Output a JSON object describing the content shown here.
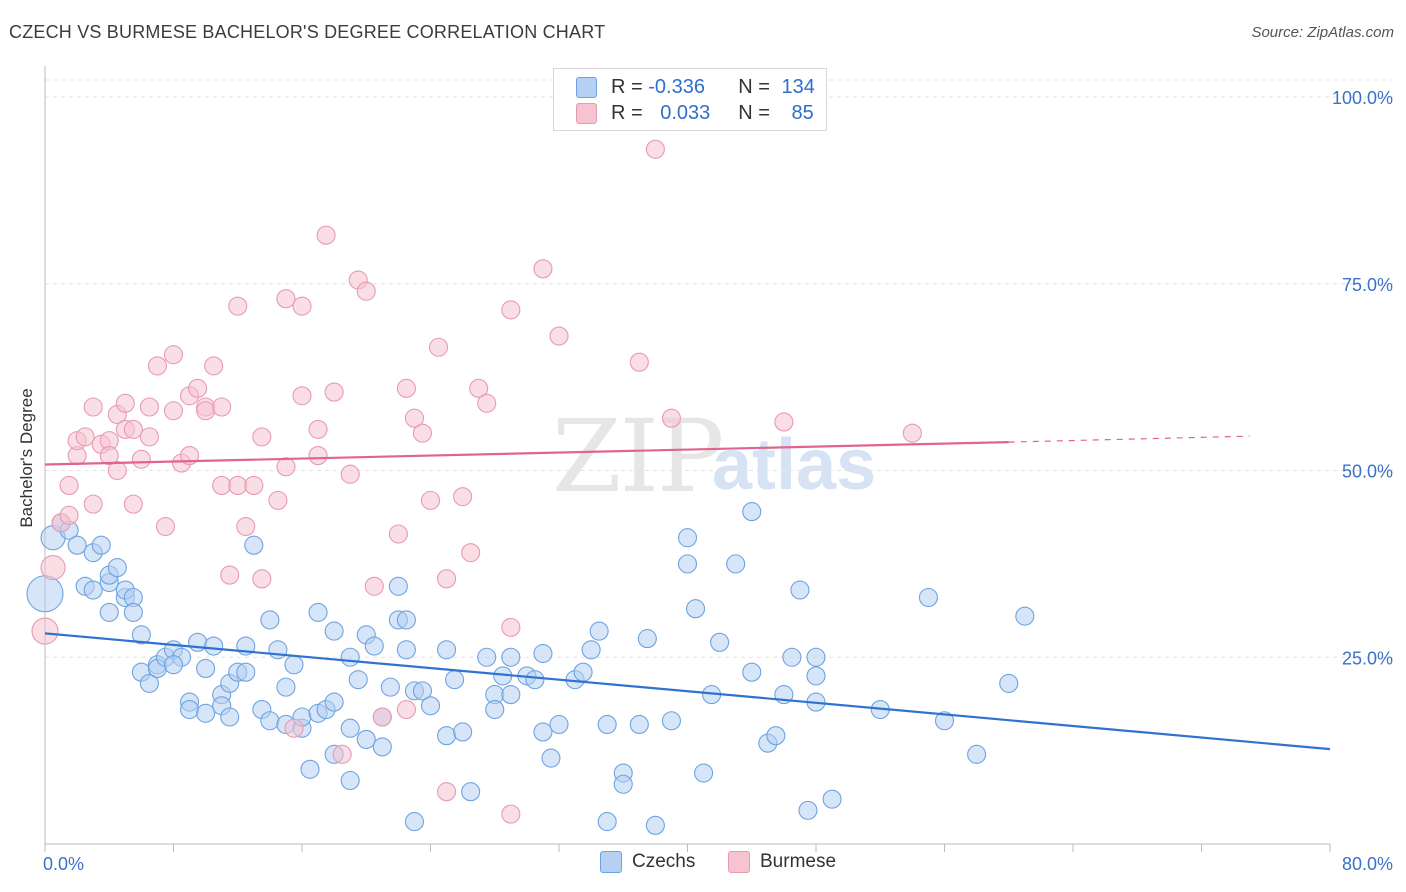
{
  "title": "CZECH VS BURMESE BACHELOR'S DEGREE CORRELATION CHART",
  "source": "Source: ZipAtlas.com",
  "watermark": {
    "zip": "ZIP",
    "atlas": "atlas"
  },
  "legend_top": {
    "rows": [
      {
        "r_label": "R =",
        "r_value": "-0.336",
        "n_label": "N =",
        "n_value": "134",
        "color": "#a8c8f0"
      },
      {
        "r_label": "R =",
        "r_value": "0.033",
        "n_label": "N =",
        "n_value": "85",
        "color": "#f4b8c8"
      }
    ]
  },
  "bottom_legend": {
    "czechs": "Czechs",
    "burmese": "Burmese"
  },
  "chart_data": {
    "type": "scatter",
    "title": "CZECH VS BURMESE BACHELOR'S DEGREE CORRELATION CHART",
    "xlabel": "",
    "ylabel": "Bachelor's Degree",
    "xlim": [
      0,
      80
    ],
    "ylim": [
      0,
      100
    ],
    "x_tick_labels": [
      "0.0%",
      "80.0%"
    ],
    "y_tick_labels": [
      "100.0%",
      "75.0%",
      "50.0%",
      "25.0%"
    ],
    "y_ticks": [
      100,
      75,
      50,
      25
    ],
    "grid": true,
    "legend_position": "top-center",
    "series": [
      {
        "name": "Czechs",
        "color": "#6fa3e0",
        "fill": "#b5d0f3",
        "line_color": "#2f72d0",
        "trend": {
          "x": [
            0,
            80
          ],
          "y": [
            28.2,
            12.7
          ]
        },
        "points": [
          [
            0,
            33.5
          ],
          [
            0.5,
            41
          ],
          [
            1,
            43
          ],
          [
            1.5,
            42
          ],
          [
            2,
            40
          ],
          [
            2.5,
            34.5
          ],
          [
            3,
            39
          ],
          [
            3,
            34
          ],
          [
            3.5,
            40
          ],
          [
            4,
            35
          ],
          [
            4,
            36
          ],
          [
            4.5,
            37
          ],
          [
            4,
            31
          ],
          [
            5,
            33
          ],
          [
            5,
            34
          ],
          [
            5.5,
            33
          ],
          [
            5.5,
            31
          ],
          [
            6,
            28
          ],
          [
            6,
            23
          ],
          [
            6.5,
            21.5
          ],
          [
            7,
            24
          ],
          [
            7,
            23.5
          ],
          [
            7.5,
            25
          ],
          [
            8,
            26
          ],
          [
            8.5,
            25
          ],
          [
            8,
            24
          ],
          [
            9,
            19
          ],
          [
            9,
            18
          ],
          [
            9.5,
            27
          ],
          [
            10,
            23.5
          ],
          [
            10,
            17.5
          ],
          [
            10.5,
            26.5
          ],
          [
            11,
            20
          ],
          [
            11,
            18.5
          ],
          [
            11.5,
            21.5
          ],
          [
            11.5,
            17
          ],
          [
            12,
            23
          ],
          [
            12.5,
            26.5
          ],
          [
            12.5,
            23
          ],
          [
            13,
            40
          ],
          [
            13.5,
            18
          ],
          [
            14,
            16.5
          ],
          [
            14,
            30
          ],
          [
            14.5,
            26
          ],
          [
            15,
            21
          ],
          [
            15,
            16
          ],
          [
            15.5,
            24
          ],
          [
            16,
            15.5
          ],
          [
            16,
            17
          ],
          [
            16.5,
            10
          ],
          [
            17,
            31
          ],
          [
            17,
            17.5
          ],
          [
            17.5,
            18
          ],
          [
            18,
            28.5
          ],
          [
            18,
            19
          ],
          [
            18,
            12
          ],
          [
            19,
            25
          ],
          [
            19,
            8.5
          ],
          [
            19,
            15.5
          ],
          [
            19.5,
            22
          ],
          [
            20,
            28
          ],
          [
            20,
            14
          ],
          [
            20.5,
            26.5
          ],
          [
            21,
            17
          ],
          [
            21,
            13
          ],
          [
            21.5,
            21
          ],
          [
            22,
            34.5
          ],
          [
            22,
            30
          ],
          [
            22.5,
            30
          ],
          [
            22.5,
            26
          ],
          [
            23,
            20.5
          ],
          [
            23.5,
            20.5
          ],
          [
            23,
            3
          ],
          [
            24,
            18.5
          ],
          [
            25,
            26
          ],
          [
            25,
            14.5
          ],
          [
            25.5,
            22
          ],
          [
            26,
            15
          ],
          [
            26.5,
            7
          ],
          [
            27.5,
            25
          ],
          [
            28,
            20
          ],
          [
            28,
            18
          ],
          [
            28.5,
            22.5
          ],
          [
            29,
            20
          ],
          [
            29,
            25
          ],
          [
            30,
            22.5
          ],
          [
            30.5,
            22
          ],
          [
            31,
            25.5
          ],
          [
            31,
            15
          ],
          [
            31.5,
            11.5
          ],
          [
            32,
            16
          ],
          [
            33,
            22
          ],
          [
            33.5,
            23
          ],
          [
            34,
            26
          ],
          [
            34.5,
            28.5
          ],
          [
            35,
            16
          ],
          [
            35,
            3
          ],
          [
            36,
            9.5
          ],
          [
            36,
            8
          ],
          [
            37,
            16
          ],
          [
            37.5,
            27.5
          ],
          [
            38,
            2.5
          ],
          [
            39,
            16.5
          ],
          [
            40,
            37.5
          ],
          [
            40,
            41
          ],
          [
            40.5,
            31.5
          ],
          [
            41,
            9.5
          ],
          [
            41.5,
            20
          ],
          [
            42,
            27
          ],
          [
            43,
            37.5
          ],
          [
            44,
            44.5
          ],
          [
            44,
            23
          ],
          [
            45,
            13.5
          ],
          [
            45.5,
            14.5
          ],
          [
            46,
            20
          ],
          [
            46.5,
            25
          ],
          [
            47,
            34
          ],
          [
            47.5,
            4.5
          ],
          [
            48,
            25
          ],
          [
            48,
            22.5
          ],
          [
            48,
            19
          ],
          [
            49,
            6
          ],
          [
            52,
            18
          ],
          [
            55,
            33
          ],
          [
            56,
            16.5
          ],
          [
            58,
            12
          ],
          [
            60,
            21.5
          ],
          [
            61,
            30.5
          ]
        ],
        "sizes_note": "larger point at x=0 y=33.5 and x=0.5 y=41"
      },
      {
        "name": "Burmese",
        "color": "#e89ab3",
        "fill": "#f6c3d1",
        "line_color": "#e0648f",
        "trend": {
          "x": [
            0,
            60
          ],
          "y": [
            50.8,
            53.8
          ],
          "dashed_to": [
            75,
            54.6
          ]
        },
        "points": [
          [
            0,
            28.5
          ],
          [
            0.5,
            37
          ],
          [
            1,
            43
          ],
          [
            1.5,
            44
          ],
          [
            1.5,
            48
          ],
          [
            2,
            52
          ],
          [
            2,
            54
          ],
          [
            2.5,
            54.5
          ],
          [
            3,
            58.5
          ],
          [
            3,
            45.5
          ],
          [
            3.5,
            53.5
          ],
          [
            4,
            54
          ],
          [
            4,
            52
          ],
          [
            4.5,
            50
          ],
          [
            4.5,
            57.5
          ],
          [
            5,
            59
          ],
          [
            5,
            55.5
          ],
          [
            5.5,
            55.5
          ],
          [
            5.5,
            45.5
          ],
          [
            6,
            51.5
          ],
          [
            6.5,
            54.5
          ],
          [
            6.5,
            58.5
          ],
          [
            7,
            64
          ],
          [
            7.5,
            42.5
          ],
          [
            8,
            65.5
          ],
          [
            8,
            58
          ],
          [
            8.5,
            51
          ],
          [
            9,
            60
          ],
          [
            9,
            52
          ],
          [
            9.5,
            61
          ],
          [
            10,
            58.5
          ],
          [
            10,
            58
          ],
          [
            10.5,
            64
          ],
          [
            11,
            48
          ],
          [
            11,
            58.5
          ],
          [
            11.5,
            36
          ],
          [
            12,
            48
          ],
          [
            12,
            72
          ],
          [
            12.5,
            42.5
          ],
          [
            13,
            48
          ],
          [
            13.5,
            54.5
          ],
          [
            13.5,
            35.5
          ],
          [
            14.5,
            46
          ],
          [
            15,
            50.5
          ],
          [
            15,
            73
          ],
          [
            15.5,
            15.5
          ],
          [
            16,
            72
          ],
          [
            16,
            60
          ],
          [
            17,
            55.5
          ],
          [
            17,
            52
          ],
          [
            17.5,
            81.5
          ],
          [
            18,
            60.5
          ],
          [
            18.5,
            12
          ],
          [
            19,
            49.5
          ],
          [
            19.5,
            75.5
          ],
          [
            20,
            74
          ],
          [
            20.5,
            34.5
          ],
          [
            21,
            17
          ],
          [
            22,
            41.5
          ],
          [
            22.5,
            61
          ],
          [
            22.5,
            18
          ],
          [
            23,
            57
          ],
          [
            23.5,
            55
          ],
          [
            24,
            46
          ],
          [
            24.5,
            66.5
          ],
          [
            25,
            35.5
          ],
          [
            25,
            7
          ],
          [
            26,
            46.5
          ],
          [
            26.5,
            39
          ],
          [
            27,
            61
          ],
          [
            27.5,
            59
          ],
          [
            29,
            29
          ],
          [
            29,
            71.5
          ],
          [
            29,
            4
          ],
          [
            31,
            77
          ],
          [
            32,
            68
          ],
          [
            37,
            64.5
          ],
          [
            38,
            93
          ],
          [
            39,
            57
          ],
          [
            46,
            56.5
          ],
          [
            54,
            55
          ]
        ]
      }
    ]
  }
}
